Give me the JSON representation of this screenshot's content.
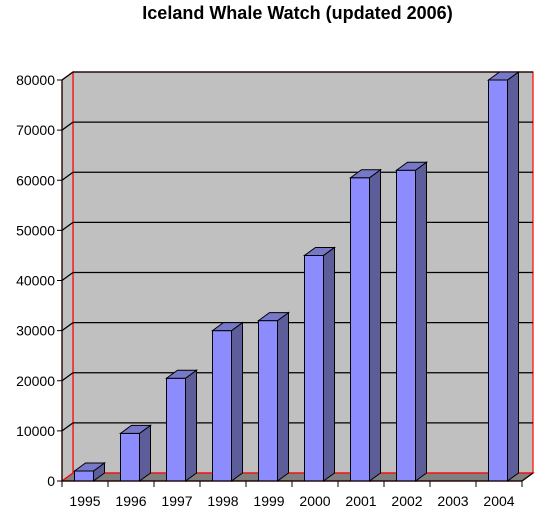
{
  "chart_data": {
    "type": "bar",
    "title": "Iceland Whale Watch (updated 2006)",
    "categories": [
      "1995",
      "1996",
      "1997",
      "1998",
      "1999",
      "2000",
      "2001",
      "2002",
      "2003",
      "2004"
    ],
    "values": [
      2000,
      9500,
      20500,
      30000,
      32000,
      45000,
      60500,
      62000,
      0,
      80000
    ],
    "ylim": [
      0,
      80000
    ],
    "yticks": [
      "0",
      "10000",
      "20000",
      "30000",
      "40000",
      "50000",
      "60000",
      "70000",
      "80000"
    ],
    "grid": true,
    "style": "3d",
    "colors": {
      "bar_front": "#8c8cff",
      "bar_side": "#5d5d9a",
      "bar_top": "#7878c8",
      "plot_back": "#c0c0c0",
      "floor": "#808080",
      "frame": "#ff0000"
    }
  }
}
